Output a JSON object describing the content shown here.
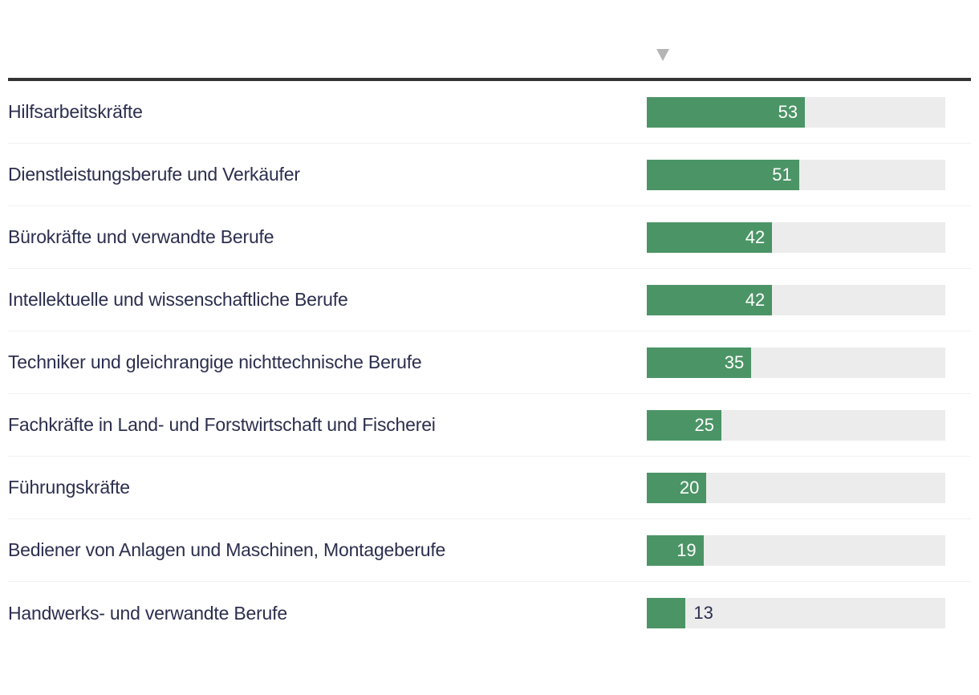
{
  "header": {
    "sort_icon": "triangle-down",
    "sort_state": "descending"
  },
  "colors": {
    "bar": "#4b9466",
    "track": "#ececec",
    "label_text": "#2b2e4e",
    "value_inside": "#ffffff",
    "value_outside": "#2b2e4e",
    "top_rule": "#333333",
    "row_divider": "#f1f1f1",
    "sort_arrow": "#b5b5b5"
  },
  "chart_data": {
    "type": "bar",
    "orientation": "horizontal",
    "title": "",
    "xlabel": "",
    "ylabel": "",
    "value_range": [
      0,
      100
    ],
    "sort": "descending",
    "grid": false,
    "legend": false,
    "categories": [
      "Hilfsarbeitskräfte",
      "Dienstleistungsberufe und Verkäufer",
      "Bürokräfte und verwandte Berufe",
      "Intellektuelle und wissenschaftliche Berufe",
      "Techniker und gleichrangige nichttechnische Berufe",
      "Fachkräfte in Land- und Forstwirtschaft und Fischerei",
      "Führungskräfte",
      "Bediener von Anlagen und Maschinen, Montageberufe",
      "Handwerks- und verwandte Berufe"
    ],
    "values": [
      53,
      51,
      42,
      42,
      35,
      25,
      20,
      19,
      13
    ]
  }
}
